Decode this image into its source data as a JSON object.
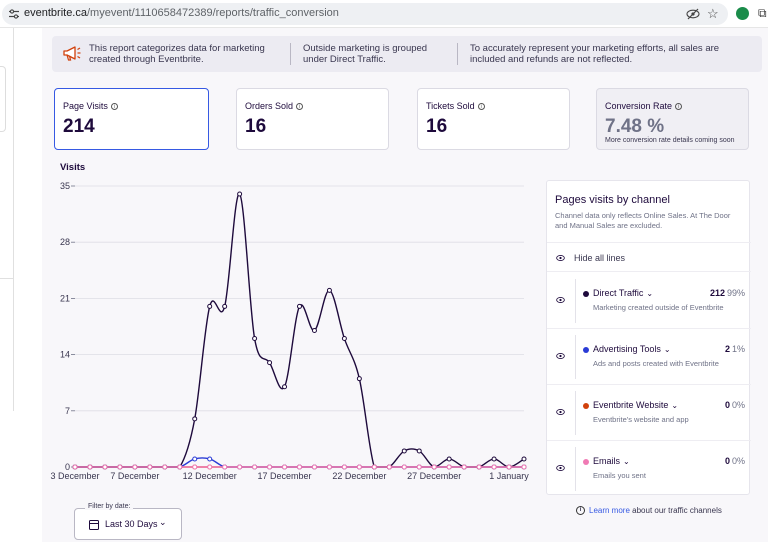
{
  "browser": {
    "url_host": "eventbrite.ca",
    "url_path": "/myevent/1110658472389/reports/traffic_conversion"
  },
  "banner": {
    "text1": "This report categorizes data for marketing created through Eventbrite.",
    "text2": "Outside marketing is grouped under Direct Traffic.",
    "text3": "To accurately represent your marketing efforts, all sales are included and refunds are not reflected."
  },
  "kpis": {
    "page_visits": {
      "label": "Page Visits",
      "value": "214"
    },
    "orders_sold": {
      "label": "Orders Sold",
      "value": "16"
    },
    "tickets_sold": {
      "label": "Tickets Sold",
      "value": "16"
    },
    "conversion": {
      "label": "Conversion Rate",
      "value": "7.48 %",
      "sub": "More conversion rate details coming soon"
    }
  },
  "chart_data": {
    "type": "line",
    "title": "Visits",
    "ylim": [
      0,
      35
    ],
    "yticks": [
      0,
      7,
      14,
      21,
      28,
      35
    ],
    "x_tick_labels": [
      "3 December",
      "7 December",
      "12 December",
      "17 December",
      "22 December",
      "27 December",
      "1 January"
    ],
    "x_tick_indices": [
      0,
      4,
      9,
      14,
      19,
      24,
      29
    ],
    "grid": true,
    "series": [
      {
        "name": "Direct Traffic",
        "color": "#1e0a3c",
        "values": [
          0,
          0,
          0,
          0,
          0,
          0,
          0,
          0,
          6,
          20,
          20,
          34,
          16,
          13,
          10,
          20,
          17,
          22,
          16,
          11,
          0,
          0,
          2,
          2,
          0,
          1,
          0,
          0,
          1,
          0,
          1
        ]
      },
      {
        "name": "Advertising Tools",
        "color": "#2a3bd6",
        "values": [
          0,
          0,
          0,
          0,
          0,
          0,
          0,
          0,
          1,
          1,
          0,
          0,
          0,
          0,
          0,
          0,
          0,
          0,
          0,
          0,
          0,
          0,
          0,
          0,
          0,
          0,
          0,
          0,
          0,
          0,
          0
        ]
      },
      {
        "name": "Eventbrite Website",
        "color": "#d1410c",
        "values": [
          0,
          0,
          0,
          0,
          0,
          0,
          0,
          0,
          0,
          0,
          0,
          0,
          0,
          0,
          0,
          0,
          0,
          0,
          0,
          0,
          0,
          0,
          0,
          0,
          0,
          0,
          0,
          0,
          0,
          0,
          0
        ]
      },
      {
        "name": "Emails",
        "color": "#f07ab4",
        "values": [
          0,
          0,
          0,
          0,
          0,
          0,
          0,
          0,
          0,
          0,
          0,
          0,
          0,
          0,
          0,
          0,
          0,
          0,
          0,
          0,
          0,
          0,
          0,
          0,
          0,
          0,
          0,
          0,
          0,
          0,
          0
        ]
      }
    ]
  },
  "channels": {
    "title": "Pages visits by channel",
    "description": "Channel data only reflects Online Sales. At The Door and Manual Sales are excluded.",
    "hide_all": "Hide all lines",
    "items": [
      {
        "name": "Direct Traffic",
        "count": "212",
        "pct": "99%",
        "sub": "Marketing created outside of Eventbrite",
        "color": "#1e0a3c"
      },
      {
        "name": "Advertising Tools",
        "count": "2",
        "pct": "1%",
        "sub": "Ads and posts created with Eventbrite",
        "color": "#2a3bd6"
      },
      {
        "name": "Eventbrite Website",
        "count": "0",
        "pct": "0%",
        "sub": "Eventbrite's website and app",
        "color": "#d1410c"
      },
      {
        "name": "Emails",
        "count": "0",
        "pct": "0%",
        "sub": "Emails you sent",
        "color": "#f07ab4"
      }
    ]
  },
  "learn": {
    "link": "Learn more",
    "rest": "about our traffic channels"
  },
  "filter": {
    "legend": "Filter by date:",
    "value": "Last 30 Days"
  }
}
